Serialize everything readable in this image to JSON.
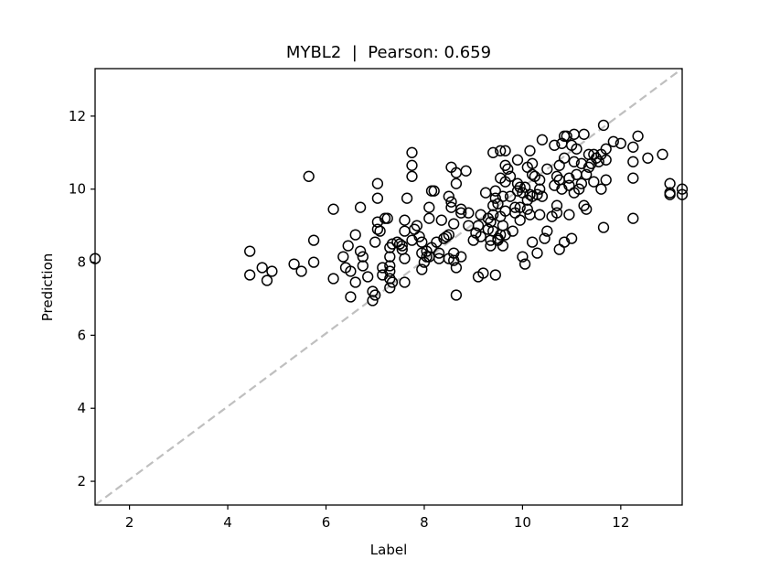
{
  "chart_data": {
    "type": "scatter",
    "title": "MYBL2  |  Pearson: 0.659",
    "xlabel": "Label",
    "ylabel": "Prediction",
    "xlim": [
      1.3,
      13.25
    ],
    "ylim": [
      1.35,
      13.3
    ],
    "xticks": [
      2,
      4,
      6,
      8,
      10,
      12
    ],
    "yticks": [
      2,
      4,
      6,
      8,
      10,
      12
    ],
    "grid": false,
    "reference_line": {
      "style": "dashed",
      "color": "#bfbfbf",
      "from": [
        1.3,
        1.35
      ],
      "to": [
        13.25,
        13.3
      ]
    },
    "marker": {
      "shape": "open-circle",
      "edge_color": "#000000",
      "fill": "none"
    },
    "points": [
      [
        1.3,
        8.1
      ],
      [
        4.45,
        8.3
      ],
      [
        4.45,
        7.65
      ],
      [
        4.7,
        7.85
      ],
      [
        4.8,
        7.5
      ],
      [
        4.9,
        7.75
      ],
      [
        5.35,
        7.95
      ],
      [
        5.5,
        7.75
      ],
      [
        5.65,
        10.35
      ],
      [
        5.75,
        8.6
      ],
      [
        5.75,
        8.0
      ],
      [
        6.15,
        9.45
      ],
      [
        6.15,
        7.55
      ],
      [
        6.35,
        8.15
      ],
      [
        6.4,
        7.85
      ],
      [
        6.45,
        8.45
      ],
      [
        6.5,
        7.05
      ],
      [
        6.5,
        7.75
      ],
      [
        6.6,
        7.45
      ],
      [
        6.6,
        8.75
      ],
      [
        6.7,
        9.5
      ],
      [
        6.7,
        8.3
      ],
      [
        6.75,
        8.15
      ],
      [
        6.75,
        7.9
      ],
      [
        6.85,
        7.6
      ],
      [
        6.95,
        7.2
      ],
      [
        6.95,
        6.95
      ],
      [
        7.0,
        7.1
      ],
      [
        7.0,
        8.55
      ],
      [
        7.05,
        8.9
      ],
      [
        7.05,
        9.1
      ],
      [
        7.05,
        9.75
      ],
      [
        7.05,
        10.15
      ],
      [
        7.1,
        8.85
      ],
      [
        7.15,
        7.85
      ],
      [
        7.15,
        7.65
      ],
      [
        7.2,
        9.2
      ],
      [
        7.25,
        9.2
      ],
      [
        7.3,
        8.4
      ],
      [
        7.3,
        8.15
      ],
      [
        7.3,
        7.9
      ],
      [
        7.3,
        7.75
      ],
      [
        7.3,
        7.55
      ],
      [
        7.3,
        7.3
      ],
      [
        7.35,
        8.5
      ],
      [
        7.35,
        7.45
      ],
      [
        7.45,
        8.55
      ],
      [
        7.5,
        8.5
      ],
      [
        7.55,
        8.35
      ],
      [
        7.55,
        8.45
      ],
      [
        7.6,
        9.15
      ],
      [
        7.6,
        8.85
      ],
      [
        7.6,
        8.1
      ],
      [
        7.6,
        7.45
      ],
      [
        7.65,
        9.75
      ],
      [
        7.75,
        11.0
      ],
      [
        7.75,
        10.65
      ],
      [
        7.75,
        10.35
      ],
      [
        7.75,
        8.6
      ],
      [
        7.8,
        8.9
      ],
      [
        7.85,
        9.0
      ],
      [
        7.9,
        8.7
      ],
      [
        7.95,
        8.55
      ],
      [
        7.95,
        8.25
      ],
      [
        7.95,
        7.8
      ],
      [
        8.0,
        8.0
      ],
      [
        8.05,
        8.15
      ],
      [
        8.05,
        8.3
      ],
      [
        8.1,
        8.15
      ],
      [
        8.1,
        9.5
      ],
      [
        8.1,
        9.2
      ],
      [
        8.15,
        9.95
      ],
      [
        8.15,
        8.4
      ],
      [
        8.2,
        9.95
      ],
      [
        8.25,
        8.55
      ],
      [
        8.3,
        8.25
      ],
      [
        8.3,
        8.1
      ],
      [
        8.35,
        9.15
      ],
      [
        8.4,
        8.65
      ],
      [
        8.45,
        8.7
      ],
      [
        8.5,
        9.8
      ],
      [
        8.5,
        8.75
      ],
      [
        8.5,
        8.1
      ],
      [
        8.55,
        10.6
      ],
      [
        8.55,
        9.65
      ],
      [
        8.55,
        9.5
      ],
      [
        8.6,
        9.05
      ],
      [
        8.6,
        8.25
      ],
      [
        8.6,
        8.05
      ],
      [
        8.65,
        10.45
      ],
      [
        8.65,
        10.15
      ],
      [
        8.65,
        7.85
      ],
      [
        8.65,
        7.1
      ],
      [
        8.75,
        9.45
      ],
      [
        8.75,
        9.35
      ],
      [
        8.75,
        8.15
      ],
      [
        8.85,
        10.5
      ],
      [
        8.9,
        9.35
      ],
      [
        8.9,
        9.0
      ],
      [
        9.0,
        8.6
      ],
      [
        9.05,
        8.8
      ],
      [
        9.1,
        9.0
      ],
      [
        9.1,
        7.6
      ],
      [
        9.15,
        9.3
      ],
      [
        9.15,
        8.7
      ],
      [
        9.2,
        7.7
      ],
      [
        9.25,
        9.9
      ],
      [
        9.3,
        9.2
      ],
      [
        9.3,
        8.9
      ],
      [
        9.35,
        9.1
      ],
      [
        9.35,
        8.6
      ],
      [
        9.35,
        8.45
      ],
      [
        9.4,
        11.0
      ],
      [
        9.4,
        9.55
      ],
      [
        9.4,
        9.3
      ],
      [
        9.4,
        8.85
      ],
      [
        9.45,
        9.95
      ],
      [
        9.45,
        9.75
      ],
      [
        9.45,
        7.65
      ],
      [
        9.5,
        9.6
      ],
      [
        9.5,
        8.65
      ],
      [
        9.5,
        8.6
      ],
      [
        9.55,
        11.05
      ],
      [
        9.55,
        10.3
      ],
      [
        9.55,
        9.25
      ],
      [
        9.55,
        8.75
      ],
      [
        9.6,
        9.8
      ],
      [
        9.6,
        9.0
      ],
      [
        9.6,
        8.45
      ],
      [
        9.65,
        10.65
      ],
      [
        9.65,
        11.05
      ],
      [
        9.65,
        10.2
      ],
      [
        9.65,
        9.4
      ],
      [
        9.65,
        8.75
      ],
      [
        9.7,
        10.55
      ],
      [
        9.75,
        10.35
      ],
      [
        9.75,
        9.8
      ],
      [
        9.8,
        8.85
      ],
      [
        9.85,
        9.5
      ],
      [
        9.85,
        9.35
      ],
      [
        9.9,
        10.8
      ],
      [
        9.9,
        10.15
      ],
      [
        9.9,
        9.95
      ],
      [
        9.95,
        10.05
      ],
      [
        9.95,
        9.5
      ],
      [
        9.95,
        9.15
      ],
      [
        10.0,
        9.9
      ],
      [
        10.0,
        8.15
      ],
      [
        10.05,
        10.05
      ],
      [
        10.05,
        7.95
      ],
      [
        10.1,
        10.6
      ],
      [
        10.1,
        9.7
      ],
      [
        10.1,
        9.45
      ],
      [
        10.15,
        11.05
      ],
      [
        10.15,
        9.85
      ],
      [
        10.15,
        9.3
      ],
      [
        10.2,
        10.7
      ],
      [
        10.2,
        10.4
      ],
      [
        10.2,
        9.8
      ],
      [
        10.2,
        8.55
      ],
      [
        10.25,
        10.35
      ],
      [
        10.3,
        9.85
      ],
      [
        10.3,
        8.25
      ],
      [
        10.35,
        10.25
      ],
      [
        10.35,
        10.0
      ],
      [
        10.35,
        9.3
      ],
      [
        10.4,
        11.35
      ],
      [
        10.4,
        9.8
      ],
      [
        10.45,
        8.65
      ],
      [
        10.5,
        10.55
      ],
      [
        10.5,
        8.85
      ],
      [
        10.6,
        9.25
      ],
      [
        10.65,
        11.2
      ],
      [
        10.65,
        10.1
      ],
      [
        10.7,
        10.35
      ],
      [
        10.7,
        9.55
      ],
      [
        10.7,
        9.35
      ],
      [
        10.75,
        10.65
      ],
      [
        10.75,
        10.25
      ],
      [
        10.75,
        8.35
      ],
      [
        10.8,
        11.25
      ],
      [
        10.8,
        10.0
      ],
      [
        10.85,
        10.85
      ],
      [
        10.85,
        11.45
      ],
      [
        10.85,
        8.55
      ],
      [
        10.9,
        11.45
      ],
      [
        10.95,
        10.1
      ],
      [
        10.95,
        10.3
      ],
      [
        10.95,
        9.3
      ],
      [
        11.0,
        11.2
      ],
      [
        11.0,
        8.65
      ],
      [
        11.05,
        11.5
      ],
      [
        11.05,
        10.75
      ],
      [
        11.05,
        9.9
      ],
      [
        11.1,
        11.1
      ],
      [
        11.1,
        10.4
      ],
      [
        11.15,
        10.0
      ],
      [
        11.2,
        10.7
      ],
      [
        11.2,
        10.15
      ],
      [
        11.25,
        11.5
      ],
      [
        11.25,
        9.55
      ],
      [
        11.3,
        10.4
      ],
      [
        11.3,
        9.45
      ],
      [
        11.35,
        10.95
      ],
      [
        11.35,
        10.6
      ],
      [
        11.4,
        10.7
      ],
      [
        11.45,
        10.95
      ],
      [
        11.45,
        10.2
      ],
      [
        11.5,
        10.85
      ],
      [
        11.55,
        10.75
      ],
      [
        11.6,
        10.0
      ],
      [
        11.6,
        10.95
      ],
      [
        11.65,
        11.75
      ],
      [
        11.65,
        8.95
      ],
      [
        11.7,
        10.25
      ],
      [
        11.7,
        11.1
      ],
      [
        11.7,
        10.8
      ],
      [
        11.85,
        11.3
      ],
      [
        12.0,
        11.25
      ],
      [
        12.25,
        11.15
      ],
      [
        12.25,
        10.75
      ],
      [
        12.25,
        10.3
      ],
      [
        12.25,
        9.2
      ],
      [
        12.35,
        11.45
      ],
      [
        12.55,
        10.85
      ],
      [
        12.85,
        10.95
      ],
      [
        13.0,
        10.15
      ],
      [
        13.0,
        9.9
      ],
      [
        13.0,
        9.85
      ],
      [
        13.25,
        10.0
      ],
      [
        13.25,
        9.85
      ]
    ]
  }
}
